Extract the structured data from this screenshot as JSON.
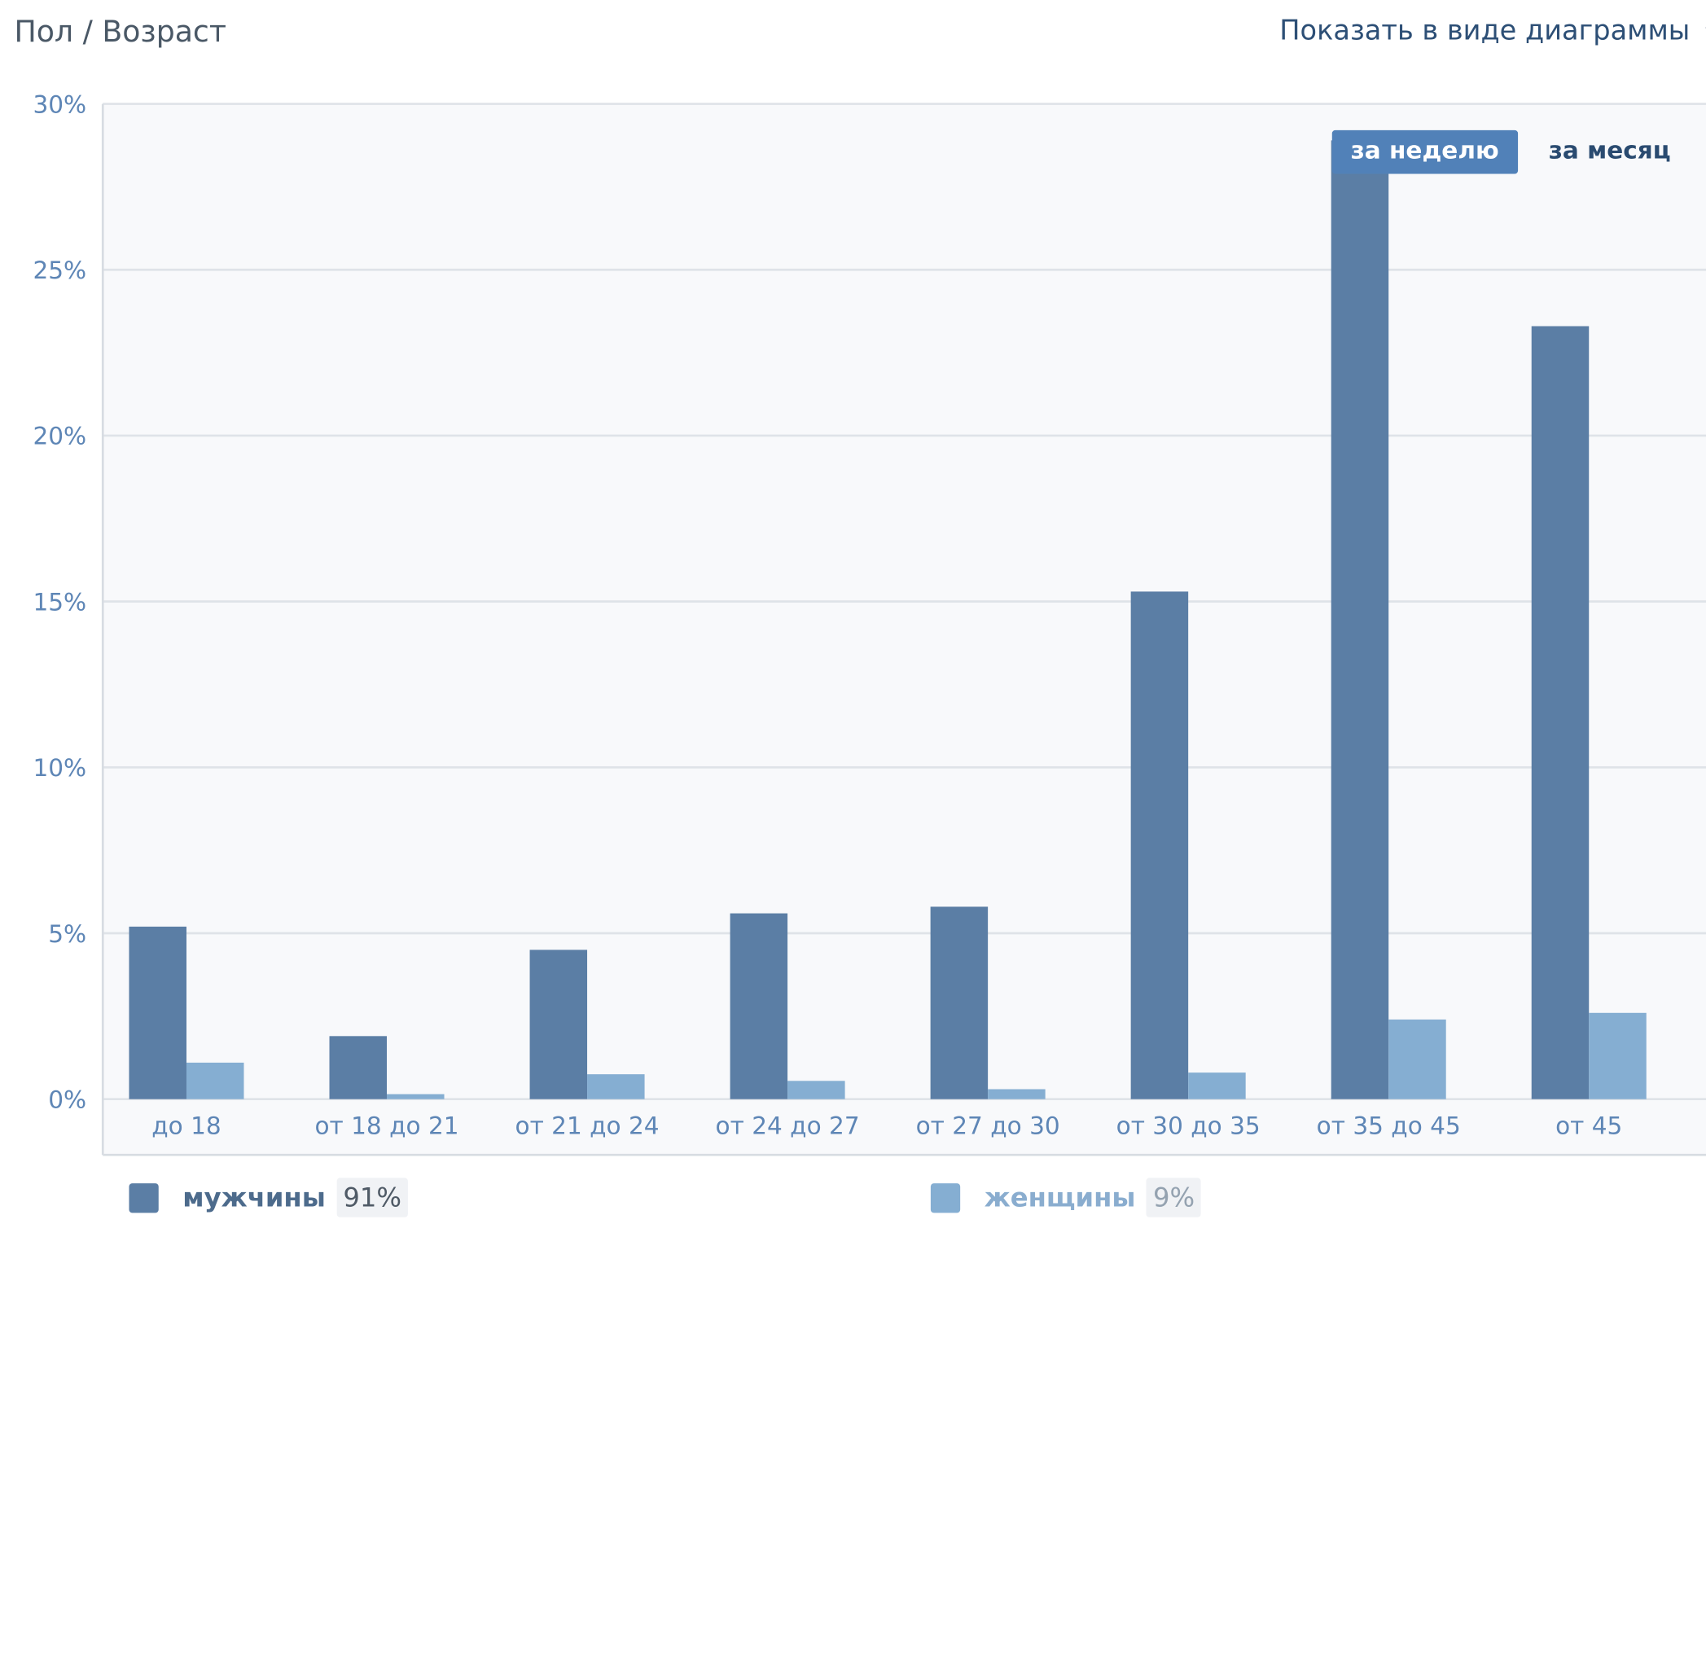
{
  "header": {
    "title": "Пол / Возраст",
    "view_toggle_label": "Показать в виде диаграммы",
    "view_toggle_icon": "chevron-down-icon"
  },
  "period_tabs": [
    {
      "label": "за неделю",
      "active": true
    },
    {
      "label": "за месяц",
      "active": false
    }
  ],
  "legend": {
    "male": {
      "label": "мужчины",
      "share": "91%"
    },
    "female": {
      "label": "женщины",
      "share": "9%"
    }
  },
  "colors": {
    "male": "#5b7ea5",
    "female": "#85aed2",
    "plot_bg": "#f8f9fb",
    "grid": "#dfe3e8",
    "tick_text": "#5e86b6",
    "active_tab": "#5181b8"
  },
  "chart_data": {
    "type": "bar",
    "categories": [
      "до 18",
      "от 18 до 21",
      "от 21 до 24",
      "от 24 до 27",
      "от 27 до 30",
      "от 30 до 35",
      "от 35 до 45",
      "от 45"
    ],
    "series": [
      {
        "name": "мужчины",
        "values": [
          5.2,
          1.9,
          4.5,
          5.6,
          5.8,
          15.3,
          28.9,
          23.3
        ]
      },
      {
        "name": "женщины",
        "values": [
          1.1,
          0.15,
          0.75,
          0.55,
          0.3,
          0.8,
          2.4,
          2.6
        ]
      }
    ],
    "ylim": [
      0,
      30
    ],
    "yticks": [
      0,
      5,
      10,
      15,
      20,
      25,
      30
    ],
    "ytick_labels": [
      "0%",
      "5%",
      "10%",
      "15%",
      "20%",
      "25%",
      "30%"
    ],
    "grid": true,
    "legend_position": "bottom"
  }
}
